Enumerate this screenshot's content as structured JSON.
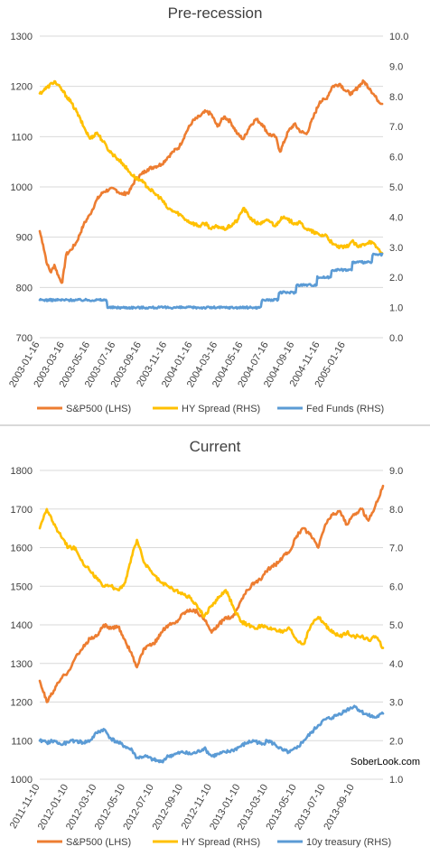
{
  "chart_data": [
    {
      "type": "line",
      "title": "Pre-recession",
      "left_axis": {
        "min": 700,
        "max": 1300,
        "ticks": [
          "700",
          "800",
          "900",
          "1000",
          "1100",
          "1200",
          "1300"
        ]
      },
      "right_axis": {
        "min": 0.0,
        "max": 10.0,
        "ticks": [
          "0.0",
          "1.0",
          "2.0",
          "3.0",
          "4.0",
          "5.0",
          "6.0",
          "7.0",
          "8.0",
          "9.0",
          "10.0"
        ]
      },
      "x_range": [
        "2003-01-16",
        "2005-04-16"
      ],
      "x_tick_labels": [
        "2003-01-16",
        "2003-03-16",
        "2003-05-16",
        "2003-07-16",
        "2003-09-16",
        "2003-11-16",
        "2004-01-16",
        "2004-03-16",
        "2004-05-16",
        "2004-07-16",
        "2004-09-16",
        "2004-11-16",
        "2005-01-16"
      ],
      "grid": "horizontal",
      "legend_position": "bottom",
      "series": [
        {
          "name": "S&P500 (LHS)",
          "axis": "left",
          "color": "#ED7D31",
          "x": [
            "2003-01-16",
            "2003-01-24",
            "2003-02-03",
            "2003-02-12",
            "2003-02-20",
            "2003-03-03",
            "2003-03-11",
            "2003-03-20",
            "2003-04-01",
            "2003-04-14",
            "2003-05-01",
            "2003-05-16",
            "2003-06-02",
            "2003-06-17",
            "2003-07-01",
            "2003-07-16",
            "2003-08-01",
            "2003-08-18",
            "2003-09-02",
            "2003-09-16",
            "2003-10-01",
            "2003-10-16",
            "2003-11-03",
            "2003-11-17",
            "2003-12-01",
            "2003-12-16",
            "2004-01-02",
            "2004-01-16",
            "2004-02-02",
            "2004-02-17",
            "2004-03-01",
            "2004-03-16",
            "2004-04-01",
            "2004-04-16",
            "2004-05-03",
            "2004-05-17",
            "2004-06-01",
            "2004-06-16",
            "2004-07-01",
            "2004-07-16",
            "2004-08-02",
            "2004-08-13",
            "2004-09-01",
            "2004-09-16",
            "2004-10-01",
            "2004-10-15",
            "2004-11-01",
            "2004-11-16",
            "2004-12-01",
            "2004-12-16",
            "2005-01-03",
            "2005-01-18",
            "2005-02-01",
            "2005-02-16",
            "2005-03-01",
            "2005-03-16",
            "2005-04-01",
            "2005-04-14"
          ],
          "y": [
            912,
            885,
            845,
            830,
            845,
            820,
            810,
            865,
            875,
            890,
            925,
            945,
            975,
            990,
            995,
            995,
            985,
            990,
            1015,
            1025,
            1035,
            1040,
            1045,
            1058,
            1070,
            1080,
            1110,
            1130,
            1140,
            1150,
            1145,
            1120,
            1140,
            1130,
            1105,
            1095,
            1120,
            1135,
            1125,
            1105,
            1100,
            1070,
            1110,
            1125,
            1110,
            1105,
            1140,
            1170,
            1175,
            1200,
            1205,
            1190,
            1185,
            1200,
            1210,
            1195,
            1175,
            1165
          ]
        },
        {
          "name": "HY Spread (RHS)",
          "axis": "right",
          "color": "#FFC000",
          "x": [
            "2003-01-16",
            "2003-02-03",
            "2003-02-20",
            "2003-03-11",
            "2003-04-01",
            "2003-04-14",
            "2003-05-01",
            "2003-05-16",
            "2003-06-02",
            "2003-06-17",
            "2003-07-01",
            "2003-07-16",
            "2003-08-01",
            "2003-08-18",
            "2003-09-02",
            "2003-09-16",
            "2003-10-01",
            "2003-10-16",
            "2003-11-03",
            "2003-11-17",
            "2003-12-01",
            "2003-12-16",
            "2004-01-02",
            "2004-01-16",
            "2004-02-02",
            "2004-02-17",
            "2004-03-01",
            "2004-03-16",
            "2004-04-01",
            "2004-04-16",
            "2004-05-03",
            "2004-05-17",
            "2004-06-01",
            "2004-06-16",
            "2004-07-01",
            "2004-07-16",
            "2004-08-02",
            "2004-08-16",
            "2004-09-01",
            "2004-09-16",
            "2004-10-01",
            "2004-10-15",
            "2004-11-01",
            "2004-11-16",
            "2004-12-01",
            "2004-12-16",
            "2005-01-03",
            "2005-01-18",
            "2005-02-01",
            "2005-02-16",
            "2005-03-01",
            "2005-03-16",
            "2005-04-01",
            "2005-04-14"
          ],
          "y": [
            8.1,
            8.3,
            8.5,
            8.2,
            7.8,
            7.5,
            7.0,
            6.6,
            6.8,
            6.5,
            6.2,
            6.0,
            5.8,
            5.5,
            5.3,
            5.2,
            5.0,
            4.8,
            4.6,
            4.3,
            4.2,
            4.1,
            3.9,
            3.8,
            3.7,
            3.8,
            3.6,
            3.7,
            3.6,
            3.7,
            3.9,
            4.3,
            4.0,
            3.8,
            3.8,
            3.9,
            3.7,
            4.0,
            3.9,
            3.8,
            3.8,
            3.6,
            3.5,
            3.4,
            3.4,
            3.1,
            3.0,
            3.0,
            3.2,
            3.0,
            3.1,
            3.2,
            3.0,
            2.8
          ]
        },
        {
          "name": "Fed Funds (RHS)",
          "axis": "right",
          "color": "#5B9BD5",
          "x": [
            "2003-01-16",
            "2003-02-16",
            "2003-03-16",
            "2003-04-16",
            "2003-05-16",
            "2003-06-16",
            "2003-06-27",
            "2003-07-16",
            "2003-08-16",
            "2003-09-16",
            "2003-10-16",
            "2003-11-16",
            "2003-12-16",
            "2004-01-16",
            "2004-02-16",
            "2004-03-16",
            "2004-04-16",
            "2004-05-16",
            "2004-06-16",
            "2004-06-30",
            "2004-07-16",
            "2004-08-10",
            "2004-09-01",
            "2004-09-21",
            "2004-10-16",
            "2004-11-10",
            "2004-12-01",
            "2004-12-14",
            "2005-01-16",
            "2005-02-02",
            "2005-03-01",
            "2005-03-22",
            "2005-04-14"
          ],
          "y": [
            1.25,
            1.25,
            1.25,
            1.25,
            1.25,
            1.25,
            1.0,
            1.0,
            1.0,
            1.0,
            1.0,
            1.0,
            1.0,
            1.0,
            1.0,
            1.0,
            1.0,
            1.0,
            1.0,
            1.25,
            1.25,
            1.5,
            1.5,
            1.75,
            1.75,
            2.0,
            2.0,
            2.25,
            2.25,
            2.5,
            2.5,
            2.75,
            2.75
          ]
        }
      ]
    },
    {
      "type": "line",
      "title": "Current",
      "left_axis": {
        "min": 1000,
        "max": 1800,
        "ticks": [
          "1000",
          "1100",
          "1200",
          "1300",
          "1400",
          "1500",
          "1600",
          "1700",
          "1800"
        ]
      },
      "right_axis": {
        "min": 1.0,
        "max": 9.0,
        "ticks": [
          "1.0",
          "2.0",
          "3.0",
          "4.0",
          "5.0",
          "6.0",
          "7.0",
          "8.0",
          "9.0"
        ]
      },
      "x_range": [
        "2011-11-10",
        "2013-11-10"
      ],
      "x_tick_labels": [
        "2011-11-10",
        "2012-01-10",
        "2012-03-10",
        "2012-05-10",
        "2012-07-10",
        "2012-09-10",
        "2012-11-10",
        "2013-01-10",
        "2013-03-10",
        "2013-05-10",
        "2013-07-10",
        "2013-09-10"
      ],
      "grid": "horizontal",
      "legend_position": "bottom",
      "watermark": "SoberLook.com",
      "series": [
        {
          "name": "S&P500 (LHS)",
          "axis": "left",
          "color": "#ED7D31",
          "x": [
            "2011-11-10",
            "2011-11-25",
            "2011-12-10",
            "2011-12-25",
            "2012-01-10",
            "2012-01-25",
            "2012-02-10",
            "2012-02-25",
            "2012-03-10",
            "2012-03-25",
            "2012-04-10",
            "2012-04-25",
            "2012-05-10",
            "2012-05-25",
            "2012-06-04",
            "2012-06-20",
            "2012-07-10",
            "2012-07-25",
            "2012-08-10",
            "2012-08-25",
            "2012-09-10",
            "2012-09-25",
            "2012-10-10",
            "2012-10-25",
            "2012-11-10",
            "2012-11-25",
            "2012-12-10",
            "2012-12-25",
            "2013-01-10",
            "2013-01-25",
            "2013-02-10",
            "2013-02-25",
            "2013-03-10",
            "2013-03-25",
            "2013-04-10",
            "2013-04-25",
            "2013-05-10",
            "2013-05-25",
            "2013-06-10",
            "2013-06-25",
            "2013-07-10",
            "2013-07-25",
            "2013-08-10",
            "2013-08-25",
            "2013-09-10",
            "2013-09-25",
            "2013-10-10",
            "2013-10-25",
            "2013-11-10"
          ],
          "y": [
            1255,
            1200,
            1230,
            1260,
            1280,
            1315,
            1340,
            1365,
            1370,
            1400,
            1390,
            1395,
            1360,
            1320,
            1290,
            1340,
            1350,
            1380,
            1400,
            1405,
            1430,
            1440,
            1435,
            1415,
            1380,
            1400,
            1420,
            1420,
            1460,
            1490,
            1510,
            1520,
            1545,
            1555,
            1575,
            1590,
            1630,
            1650,
            1630,
            1600,
            1660,
            1685,
            1695,
            1660,
            1685,
            1700,
            1670,
            1710,
            1760
          ]
        },
        {
          "name": "HY Spread (RHS)",
          "axis": "right",
          "color": "#FFC000",
          "x": [
            "2011-11-10",
            "2011-11-25",
            "2011-12-10",
            "2011-12-25",
            "2012-01-10",
            "2012-01-25",
            "2012-02-10",
            "2012-02-25",
            "2012-03-10",
            "2012-03-25",
            "2012-04-10",
            "2012-04-25",
            "2012-05-10",
            "2012-05-25",
            "2012-06-04",
            "2012-06-20",
            "2012-07-10",
            "2012-07-25",
            "2012-08-10",
            "2012-08-25",
            "2012-09-10",
            "2012-09-25",
            "2012-10-10",
            "2012-10-25",
            "2012-11-10",
            "2012-11-25",
            "2012-12-10",
            "2012-12-25",
            "2013-01-10",
            "2013-01-25",
            "2013-02-10",
            "2013-02-25",
            "2013-03-10",
            "2013-03-25",
            "2013-04-10",
            "2013-04-25",
            "2013-05-10",
            "2013-05-25",
            "2013-06-10",
            "2013-06-25",
            "2013-07-10",
            "2013-07-25",
            "2013-08-10",
            "2013-08-25",
            "2013-09-10",
            "2013-09-25",
            "2013-10-10",
            "2013-10-25",
            "2013-11-10"
          ],
          "y": [
            7.5,
            8.0,
            7.6,
            7.3,
            7.0,
            7.0,
            6.6,
            6.4,
            6.2,
            6.0,
            6.0,
            5.9,
            6.1,
            6.8,
            7.2,
            6.6,
            6.3,
            6.1,
            6.0,
            5.9,
            5.8,
            5.7,
            5.5,
            5.2,
            5.5,
            5.7,
            5.9,
            5.5,
            5.1,
            5.0,
            4.9,
            5.0,
            4.9,
            4.9,
            4.8,
            4.9,
            4.6,
            4.5,
            5.0,
            5.2,
            5.0,
            4.8,
            4.7,
            4.8,
            4.7,
            4.7,
            4.6,
            4.7,
            4.4
          ]
        },
        {
          "name": "10y treasury (RHS)",
          "axis": "right",
          "color": "#5B9BD5",
          "x": [
            "2011-11-10",
            "2011-11-25",
            "2011-12-10",
            "2011-12-25",
            "2012-01-10",
            "2012-01-25",
            "2012-02-10",
            "2012-02-25",
            "2012-03-10",
            "2012-03-25",
            "2012-04-10",
            "2012-04-25",
            "2012-05-10",
            "2012-05-25",
            "2012-06-04",
            "2012-06-20",
            "2012-07-10",
            "2012-07-25",
            "2012-08-10",
            "2012-08-25",
            "2012-09-10",
            "2012-09-25",
            "2012-10-10",
            "2012-10-25",
            "2012-11-10",
            "2012-11-25",
            "2012-12-10",
            "2012-12-25",
            "2013-01-10",
            "2013-01-25",
            "2013-02-10",
            "2013-02-25",
            "2013-03-10",
            "2013-03-25",
            "2013-04-10",
            "2013-04-25",
            "2013-05-10",
            "2013-05-25",
            "2013-06-10",
            "2013-06-25",
            "2013-07-10",
            "2013-07-25",
            "2013-08-10",
            "2013-08-25",
            "2013-09-10",
            "2013-09-25",
            "2013-10-10",
            "2013-10-25",
            "2013-11-10"
          ],
          "y": [
            2.0,
            1.95,
            2.0,
            1.9,
            1.95,
            2.0,
            1.95,
            2.0,
            2.2,
            2.3,
            2.05,
            1.95,
            1.85,
            1.75,
            1.55,
            1.6,
            1.5,
            1.45,
            1.6,
            1.65,
            1.7,
            1.65,
            1.7,
            1.8,
            1.6,
            1.65,
            1.7,
            1.75,
            1.85,
            1.95,
            2.0,
            1.9,
            2.0,
            1.9,
            1.75,
            1.7,
            1.8,
            2.0,
            2.2,
            2.4,
            2.55,
            2.6,
            2.7,
            2.8,
            2.9,
            2.75,
            2.65,
            2.6,
            2.7
          ]
        }
      ]
    }
  ]
}
